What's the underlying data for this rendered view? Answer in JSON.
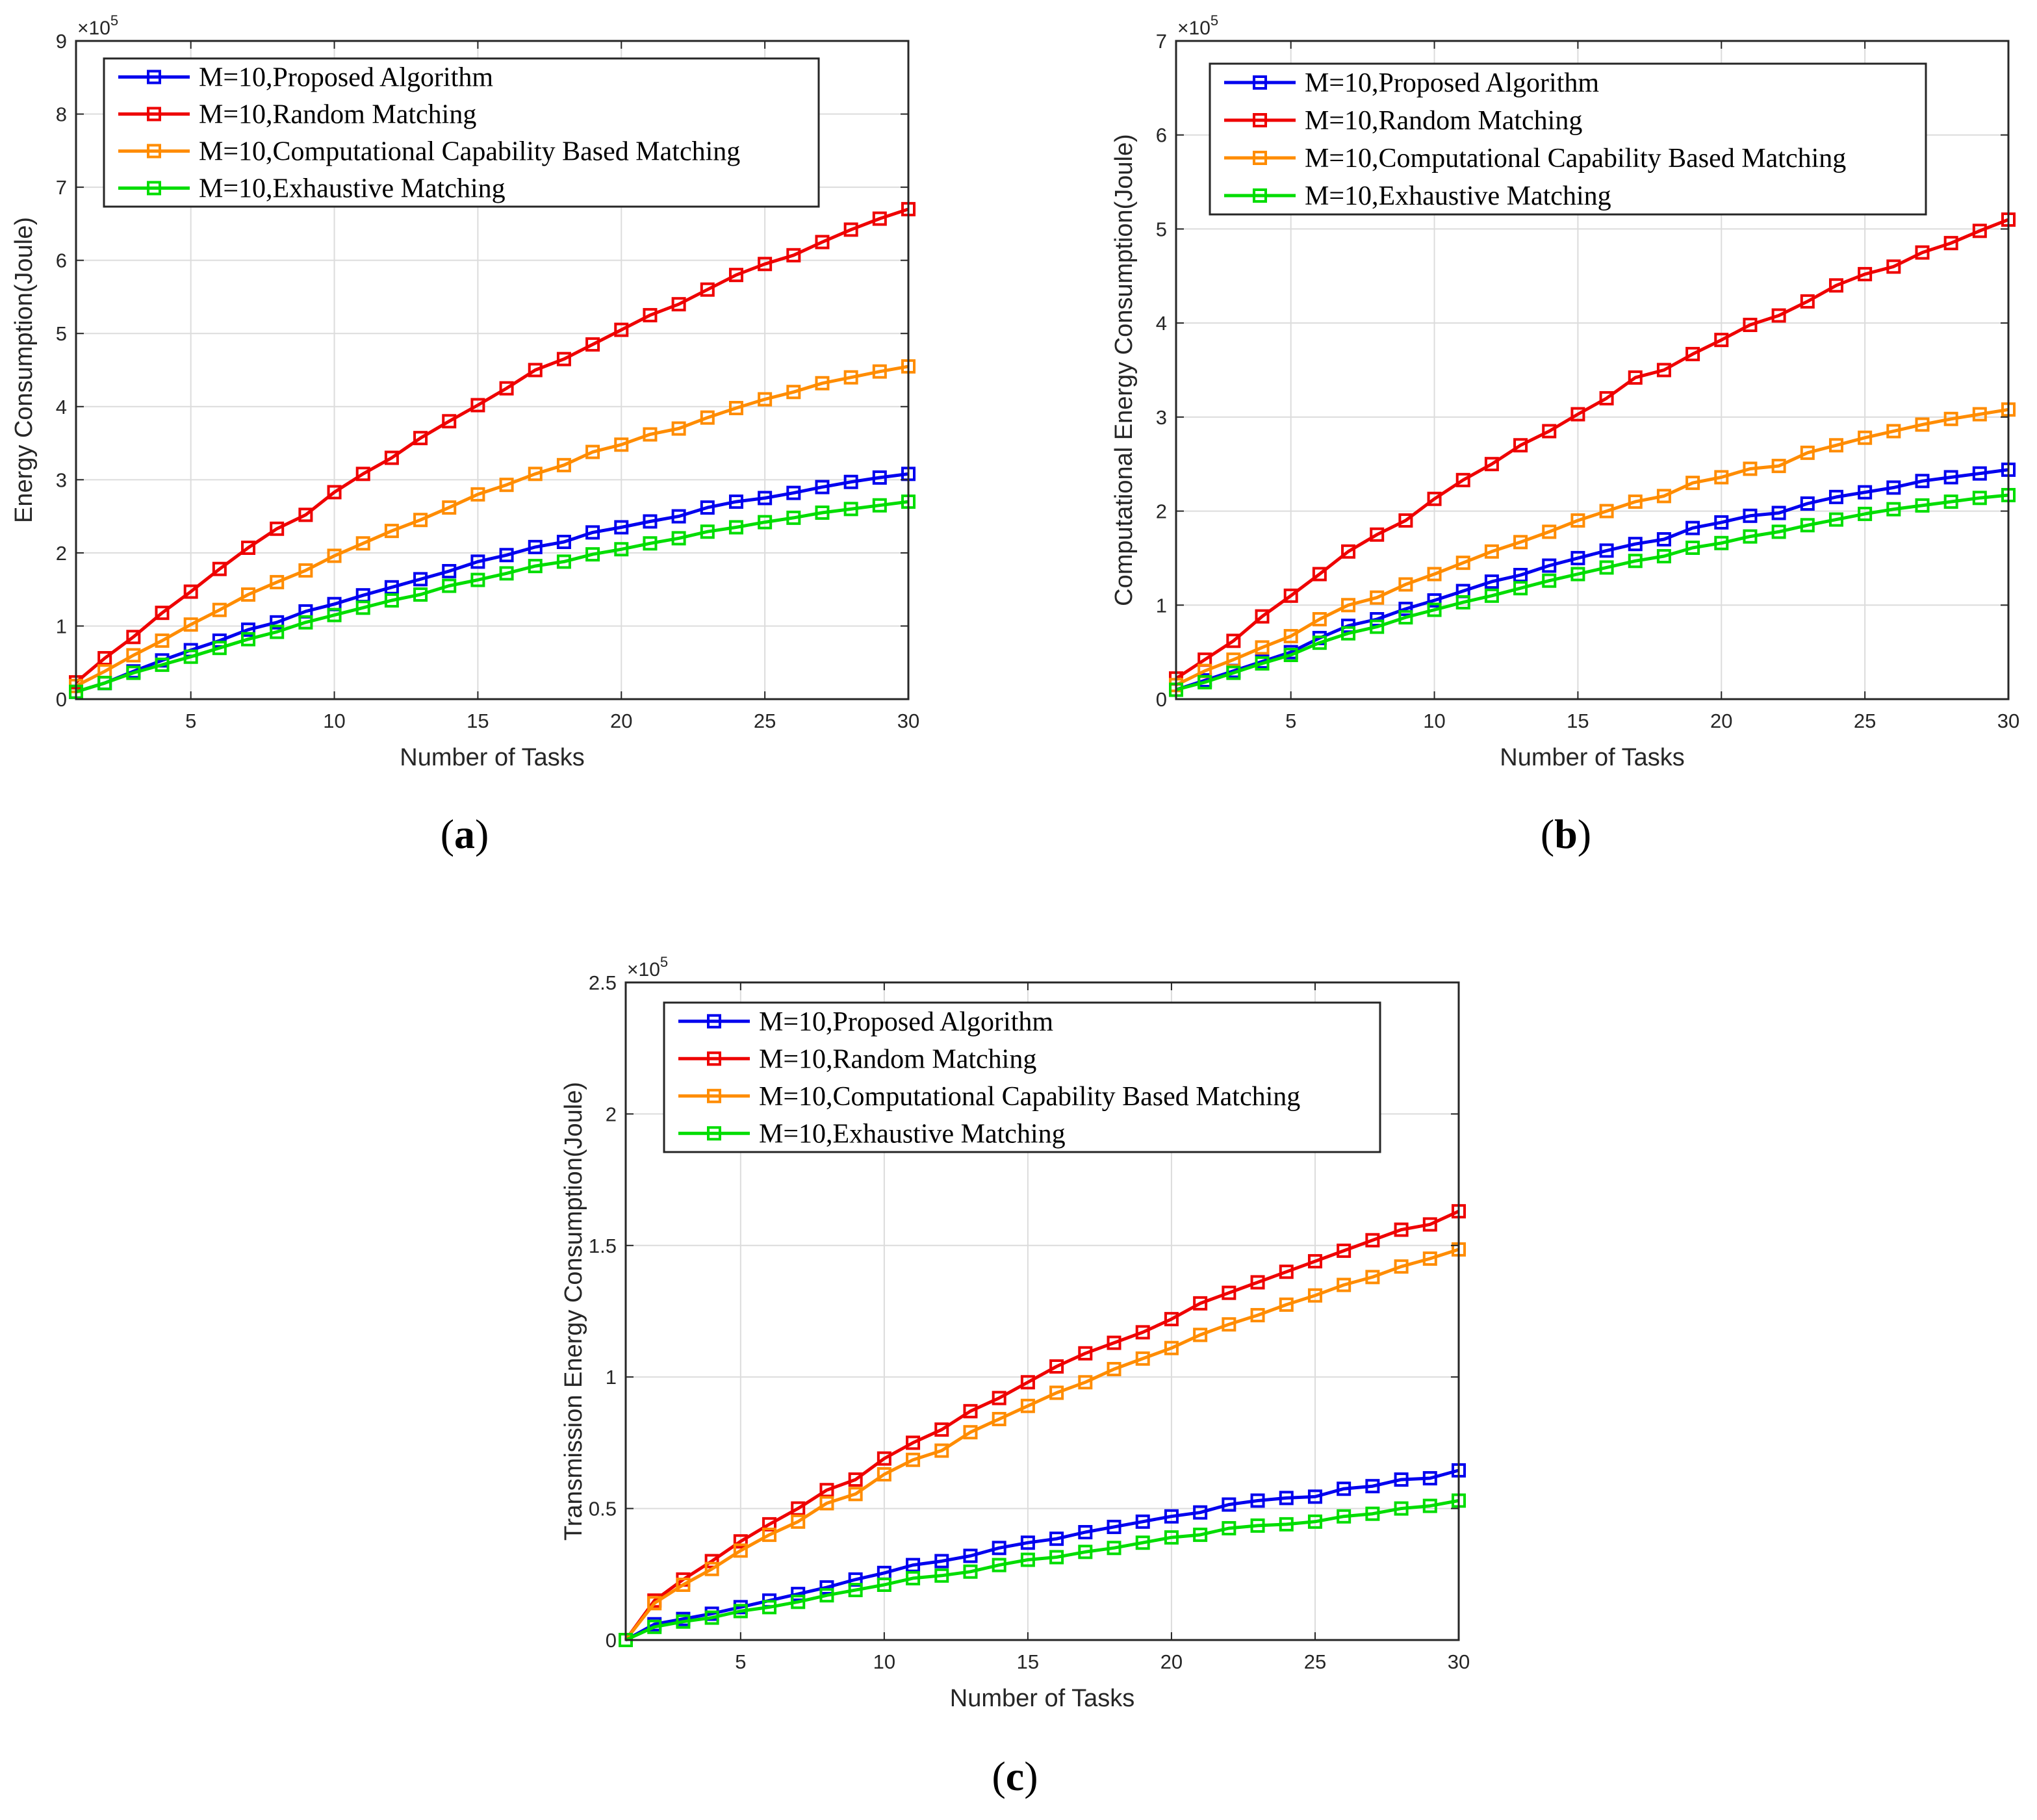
{
  "chart_data": [
    {
      "type": "line",
      "panel_label": "a",
      "xlabel": "Number of Tasks",
      "ylabel": "Energy Consumption(Joule)",
      "y_exponent_label": "×10",
      "y_exponent_power": "5",
      "xlim": [
        1,
        30
      ],
      "ylim": [
        0,
        9
      ],
      "xticks": [
        5,
        10,
        15,
        20,
        25,
        30
      ],
      "yticks": [
        0,
        1,
        2,
        3,
        4,
        5,
        6,
        7,
        8,
        9
      ],
      "grid": true,
      "legend_position": "top-left",
      "x": [
        1,
        2,
        3,
        4,
        5,
        6,
        7,
        8,
        9,
        10,
        11,
        12,
        13,
        14,
        15,
        16,
        17,
        18,
        19,
        20,
        21,
        22,
        23,
        24,
        25,
        26,
        27,
        28,
        29,
        30
      ],
      "series": [
        {
          "name": "M=10,Proposed Algorithm",
          "color": "#0000ee",
          "values": [
            0.1,
            0.22,
            0.38,
            0.53,
            0.67,
            0.8,
            0.95,
            1.05,
            1.2,
            1.3,
            1.42,
            1.53,
            1.64,
            1.75,
            1.88,
            1.97,
            2.08,
            2.15,
            2.28,
            2.35,
            2.43,
            2.5,
            2.62,
            2.7,
            2.75,
            2.82,
            2.9,
            2.97,
            3.03,
            3.08
          ]
        },
        {
          "name": "M=10,Random Matching",
          "color": "#ee0000",
          "values": [
            0.23,
            0.56,
            0.85,
            1.18,
            1.47,
            1.78,
            2.07,
            2.33,
            2.52,
            2.83,
            3.08,
            3.3,
            3.57,
            3.8,
            4.02,
            4.25,
            4.5,
            4.65,
            4.85,
            5.05,
            5.25,
            5.4,
            5.6,
            5.8,
            5.95,
            6.07,
            6.25,
            6.42,
            6.57,
            6.7
          ]
        },
        {
          "name": "M=10,Computational Capability Based Matching",
          "color": "#ff8c00",
          "values": [
            0.18,
            0.38,
            0.6,
            0.8,
            1.02,
            1.22,
            1.43,
            1.6,
            1.76,
            1.96,
            2.13,
            2.3,
            2.45,
            2.62,
            2.8,
            2.93,
            3.08,
            3.2,
            3.38,
            3.48,
            3.62,
            3.7,
            3.85,
            3.98,
            4.1,
            4.2,
            4.32,
            4.4,
            4.48,
            4.55
          ]
        },
        {
          "name": "M=10,Exhaustive Matching",
          "color": "#00dd00",
          "values": [
            0.1,
            0.22,
            0.36,
            0.47,
            0.58,
            0.7,
            0.82,
            0.92,
            1.05,
            1.15,
            1.25,
            1.35,
            1.43,
            1.55,
            1.63,
            1.72,
            1.82,
            1.88,
            1.98,
            2.05,
            2.13,
            2.2,
            2.29,
            2.35,
            2.42,
            2.48,
            2.55,
            2.6,
            2.65,
            2.7
          ]
        }
      ]
    },
    {
      "type": "line",
      "panel_label": "b",
      "xlabel": "Number of Tasks",
      "ylabel": "Computational Energy Consumption(Joule)",
      "y_exponent_label": "×10",
      "y_exponent_power": "5",
      "xlim": [
        1,
        30
      ],
      "ylim": [
        0,
        7
      ],
      "xticks": [
        5,
        10,
        15,
        20,
        25,
        30
      ],
      "yticks": [
        0,
        1,
        2,
        3,
        4,
        5,
        6,
        7
      ],
      "grid": true,
      "legend_position": "top-left",
      "x": [
        1,
        2,
        3,
        4,
        5,
        6,
        7,
        8,
        9,
        10,
        11,
        12,
        13,
        14,
        15,
        16,
        17,
        18,
        19,
        20,
        21,
        22,
        23,
        24,
        25,
        26,
        27,
        28,
        29,
        30
      ],
      "series": [
        {
          "name": "M=10,Proposed Algorithm",
          "color": "#0000ee",
          "values": [
            0.1,
            0.2,
            0.3,
            0.4,
            0.5,
            0.65,
            0.78,
            0.85,
            0.96,
            1.05,
            1.15,
            1.25,
            1.32,
            1.42,
            1.5,
            1.58,
            1.65,
            1.7,
            1.82,
            1.88,
            1.95,
            1.98,
            2.08,
            2.15,
            2.2,
            2.25,
            2.32,
            2.36,
            2.4,
            2.44
          ]
        },
        {
          "name": "M=10,Random Matching",
          "color": "#ee0000",
          "values": [
            0.22,
            0.42,
            0.62,
            0.88,
            1.1,
            1.33,
            1.57,
            1.75,
            1.9,
            2.13,
            2.33,
            2.5,
            2.7,
            2.85,
            3.03,
            3.2,
            3.42,
            3.5,
            3.67,
            3.82,
            3.98,
            4.08,
            4.23,
            4.4,
            4.52,
            4.6,
            4.75,
            4.85,
            4.98,
            5.1
          ]
        },
        {
          "name": "M=10,Computational Capability Based Matching",
          "color": "#ff8c00",
          "values": [
            0.15,
            0.3,
            0.42,
            0.55,
            0.67,
            0.85,
            1.0,
            1.08,
            1.22,
            1.33,
            1.45,
            1.57,
            1.67,
            1.78,
            1.9,
            2.0,
            2.1,
            2.16,
            2.3,
            2.36,
            2.45,
            2.48,
            2.62,
            2.7,
            2.78,
            2.85,
            2.92,
            2.98,
            3.03,
            3.08
          ]
        },
        {
          "name": "M=10,Exhaustive Matching",
          "color": "#00dd00",
          "values": [
            0.1,
            0.18,
            0.28,
            0.38,
            0.47,
            0.6,
            0.7,
            0.77,
            0.87,
            0.95,
            1.03,
            1.1,
            1.18,
            1.26,
            1.33,
            1.4,
            1.47,
            1.52,
            1.61,
            1.66,
            1.73,
            1.78,
            1.85,
            1.91,
            1.97,
            2.02,
            2.06,
            2.1,
            2.14,
            2.17
          ]
        }
      ]
    },
    {
      "type": "line",
      "panel_label": "c",
      "xlabel": "Number of Tasks",
      "ylabel": "Transmission Energy Consumption(Joule)",
      "y_exponent_label": "×10",
      "y_exponent_power": "5",
      "xlim": [
        1,
        30
      ],
      "ylim": [
        0,
        2.5
      ],
      "xticks": [
        5,
        10,
        15,
        20,
        25,
        30
      ],
      "yticks": [
        0,
        0.5,
        1,
        1.5,
        2,
        2.5
      ],
      "ytick_labels": [
        "0",
        "0.5",
        "1",
        "1.5",
        "2",
        "2.5"
      ],
      "grid": true,
      "legend_position": "top-left",
      "x": [
        1,
        2,
        3,
        4,
        5,
        6,
        7,
        8,
        9,
        10,
        11,
        12,
        13,
        14,
        15,
        16,
        17,
        18,
        19,
        20,
        21,
        22,
        23,
        24,
        25,
        26,
        27,
        28,
        29,
        30
      ],
      "series": [
        {
          "name": "M=10,Proposed Algorithm",
          "color": "#0000ee",
          "values": [
            0.0,
            0.06,
            0.08,
            0.1,
            0.125,
            0.15,
            0.175,
            0.2,
            0.23,
            0.255,
            0.285,
            0.3,
            0.32,
            0.35,
            0.37,
            0.385,
            0.41,
            0.43,
            0.45,
            0.47,
            0.485,
            0.515,
            0.53,
            0.54,
            0.545,
            0.575,
            0.585,
            0.61,
            0.615,
            0.645
          ]
        },
        {
          "name": "M=10,Random Matching",
          "color": "#ee0000",
          "values": [
            0.0,
            0.15,
            0.23,
            0.3,
            0.375,
            0.44,
            0.5,
            0.57,
            0.61,
            0.69,
            0.75,
            0.8,
            0.87,
            0.92,
            0.98,
            1.04,
            1.09,
            1.13,
            1.17,
            1.22,
            1.28,
            1.32,
            1.36,
            1.4,
            1.44,
            1.48,
            1.52,
            1.56,
            1.58,
            1.63
          ]
        },
        {
          "name": "M=10,Computational Capability Based Matching",
          "color": "#ff8c00",
          "values": [
            0.0,
            0.14,
            0.21,
            0.27,
            0.34,
            0.4,
            0.45,
            0.52,
            0.555,
            0.63,
            0.685,
            0.72,
            0.79,
            0.84,
            0.89,
            0.94,
            0.98,
            1.03,
            1.07,
            1.11,
            1.16,
            1.2,
            1.235,
            1.275,
            1.31,
            1.35,
            1.38,
            1.42,
            1.45,
            1.485
          ]
        },
        {
          "name": "M=10,Exhaustive Matching",
          "color": "#00dd00",
          "values": [
            0.0,
            0.05,
            0.07,
            0.085,
            0.11,
            0.125,
            0.145,
            0.17,
            0.19,
            0.21,
            0.235,
            0.245,
            0.26,
            0.285,
            0.305,
            0.315,
            0.335,
            0.35,
            0.37,
            0.39,
            0.4,
            0.425,
            0.435,
            0.44,
            0.45,
            0.47,
            0.48,
            0.5,
            0.51,
            0.53
          ]
        }
      ]
    }
  ]
}
